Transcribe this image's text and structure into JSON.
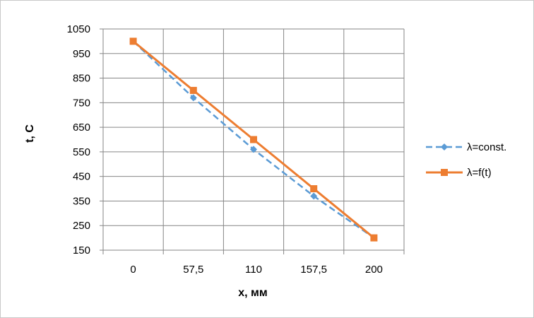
{
  "chart_data": {
    "type": "line",
    "categories": [
      "0",
      "57,5",
      "110",
      "157,5",
      "200"
    ],
    "series": [
      {
        "name": "λ=const.",
        "values": [
          1000,
          770,
          560,
          370,
          200
        ],
        "color": "#5b9bd5",
        "dash": "dashed",
        "marker": "diamond"
      },
      {
        "name": "λ=f(t)",
        "values": [
          1000,
          800,
          600,
          400,
          200
        ],
        "color": "#ed7d31",
        "dash": "solid",
        "marker": "square"
      }
    ],
    "xlabel": "x, мм",
    "ylabel": "t, C",
    "ylim": [
      150,
      1050
    ],
    "yticks": [
      150,
      250,
      350,
      450,
      550,
      650,
      750,
      850,
      950,
      1050
    ],
    "grid": true,
    "legend_position": "right"
  }
}
